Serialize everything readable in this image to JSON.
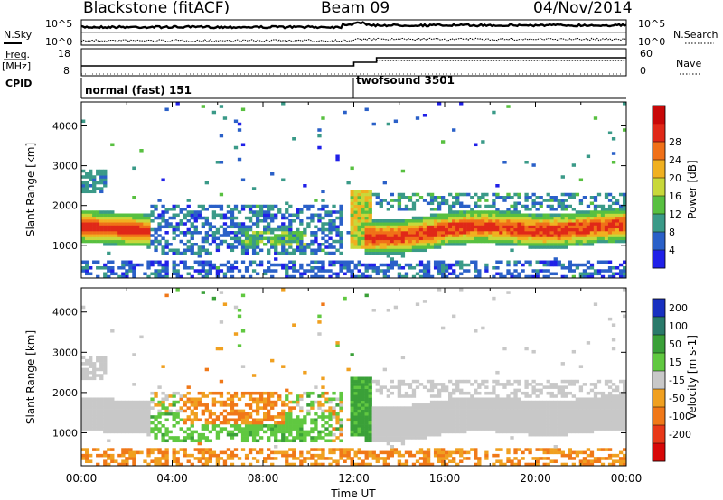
{
  "header": {
    "station": "Blackstone (fitACF)",
    "beam": "Beam 09",
    "date": "04/Nov/2014"
  },
  "top_panels": {
    "nsky_label": "N.Sky",
    "nsearch_label": "N.Search",
    "noise_ticks_left": [
      "10^5",
      "10^0"
    ],
    "noise_ticks_right": [
      "10^5",
      "10^0"
    ],
    "freq_label_1": "Freq.",
    "freq_label_2": "[MHz]",
    "freq_ticks": [
      "18",
      "8"
    ],
    "nave_label": "Nave",
    "nave_ticks": [
      "60",
      "0"
    ],
    "cpid_label": "CPID",
    "modes": [
      {
        "name": "normal (fast) 151",
        "start_hour": 0
      },
      {
        "name": "twofsound 3501",
        "start_hour": 12
      }
    ]
  },
  "chart_data": [
    {
      "type": "heatmap",
      "title": "",
      "quantity": "Power",
      "xlabel": "Time UT",
      "ylabel": "Slant Range [km]",
      "x_range_hours": [
        0,
        24
      ],
      "x_ticks": [
        "00:00",
        "04:00",
        "08:00",
        "12:00",
        "16:00",
        "20:00",
        "00:00"
      ],
      "ylim": [
        180,
        4600
      ],
      "y_ticks": [
        "1000",
        "2000",
        "3000",
        "4000"
      ],
      "colorbar": {
        "label": "Power [dB]",
        "ticks": [
          "4",
          "8",
          "12",
          "16",
          "20",
          "24",
          "28"
        ],
        "colors": [
          "#2020e8",
          "#2a60c8",
          "#3a9a88",
          "#58c040",
          "#c8d83a",
          "#f0b020",
          "#f07018",
          "#e02818",
          "#c80808"
        ]
      }
    },
    {
      "type": "heatmap",
      "title": "",
      "quantity": "Velocity",
      "xlabel": "Time UT",
      "ylabel": "Slant Range [km]",
      "x_range_hours": [
        0,
        24
      ],
      "x_ticks": [
        "00:00",
        "04:00",
        "08:00",
        "12:00",
        "16:00",
        "20:00",
        "00:00"
      ],
      "ylim": [
        180,
        4600
      ],
      "y_ticks": [
        "1000",
        "2000",
        "3000",
        "4000"
      ],
      "colorbar": {
        "label": "Velocity [m s-1]",
        "ticks": [
          "200",
          "100",
          "50",
          "15",
          "-15",
          "-50",
          "-100",
          "-200"
        ],
        "colors": [
          "#1830c0",
          "#2a7a6a",
          "#3aa038",
          "#60c840",
          "#c8c8c8",
          "#f0a020",
          "#f07818",
          "#e83818",
          "#d80808"
        ]
      }
    }
  ]
}
